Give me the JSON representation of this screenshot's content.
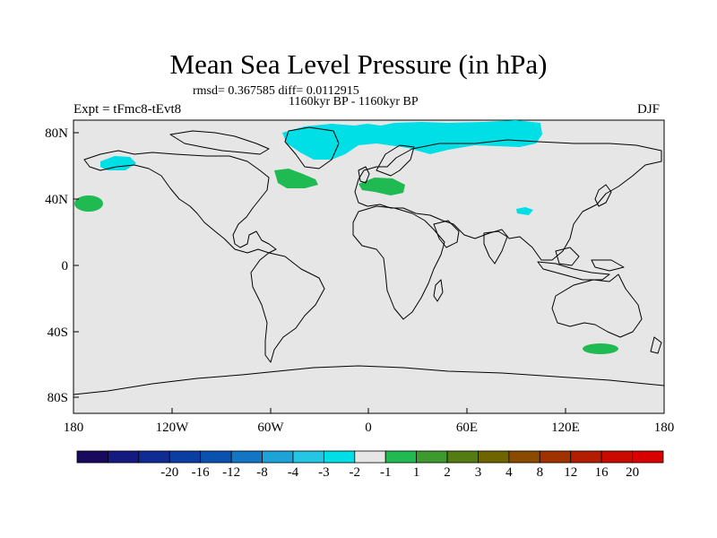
{
  "title": "Mean Sea Level Pressure (in hPa)",
  "stats": "rmsd= 0.367585 diff= 0.0112915",
  "period": "1160kyr BP - 1160kyr BP",
  "experiment": "Expt = tFmc8-tEvt8",
  "season": "DJF",
  "y_ticks": [
    "80N",
    "40N",
    "0",
    "40S",
    "80S"
  ],
  "x_ticks": [
    "180",
    "120W",
    "60W",
    "0",
    "60E",
    "120E",
    "180"
  ],
  "colorbar": {
    "labels": [
      "-20",
      "-16",
      "-12",
      "-8",
      "-4",
      "-3",
      "-2",
      "-1",
      "1",
      "2",
      "3",
      "4",
      "8",
      "12",
      "16",
      "20"
    ],
    "colors": [
      "#1a0a5e",
      "#141a80",
      "#102c92",
      "#0a3ea2",
      "#0b52b0",
      "#1276c4",
      "#1ea2d8",
      "#24c6e4",
      "#00dfe5",
      "#e6e6e6",
      "#1fba52",
      "#3d9a2e",
      "#557c12",
      "#6e6400",
      "#8a4a00",
      "#a03200",
      "#b41e00",
      "#c80a00",
      "#d80000"
    ]
  },
  "colors": {
    "ocean_background": "#e6e6e6",
    "negative_anomaly": "#00dfe5",
    "positive_anomaly": "#1fba52"
  }
}
